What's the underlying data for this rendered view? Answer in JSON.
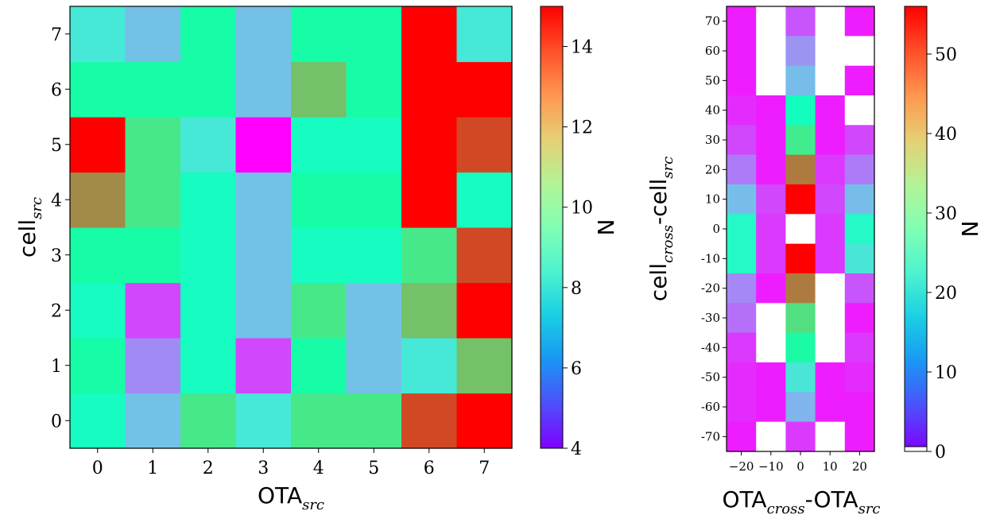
{
  "chart_data": [
    {
      "type": "heatmap",
      "xlabel": {
        "main": "OTA",
        "sub": "src"
      },
      "ylabel": {
        "main": "cell",
        "sub": "src"
      },
      "x_ticks": [
        "0",
        "1",
        "2",
        "3",
        "4",
        "5",
        "6",
        "7"
      ],
      "y_ticks": [
        "0",
        "1",
        "2",
        "3",
        "4",
        "5",
        "6",
        "7"
      ],
      "colorbar": {
        "label": "N",
        "min": 4,
        "max": 15,
        "ticks": [
          "4",
          "6",
          "8",
          "10",
          "12",
          "14"
        ],
        "tick_values": [
          4,
          6,
          8,
          10,
          12,
          14
        ],
        "colormap": "rainbow"
      },
      "grid": "off",
      "values_by_row_y0_to_y7": [
        [
          9,
          7,
          11,
          8,
          11,
          11,
          14,
          15
        ],
        [
          10,
          6,
          9,
          5,
          10,
          7,
          8,
          12
        ],
        [
          9,
          5,
          9,
          7,
          11,
          7,
          12,
          15
        ],
        [
          10,
          10,
          9,
          7,
          9,
          9,
          11,
          14
        ],
        [
          13,
          11,
          9,
          7,
          10,
          10,
          15,
          9
        ],
        [
          15,
          11,
          8,
          4,
          9,
          9,
          15,
          14
        ],
        [
          10,
          10,
          10,
          7,
          12,
          10,
          15,
          15
        ],
        [
          8,
          7,
          10,
          7,
          10,
          10,
          15,
          8
        ]
      ]
    },
    {
      "type": "heatmap",
      "xlabel": {
        "main": "OTA",
        "mid": "-OTA",
        "sub1": "cross",
        "sub2": "src"
      },
      "ylabel": {
        "main": "cell",
        "mid": "-cell",
        "sub1": "cross",
        "sub2": "src"
      },
      "x_ticks": [
        "−20",
        "−10",
        "0",
        "10",
        "20"
      ],
      "x_tick_values": [
        -20,
        -10,
        0,
        10,
        20
      ],
      "y_ticks": [
        "70",
        "60",
        "50",
        "40",
        "30",
        "20",
        "10",
        "0",
        "-10",
        "-20",
        "-30",
        "-40",
        "-50",
        "-60",
        "-70"
      ],
      "y_tick_values": [
        70,
        60,
        50,
        40,
        30,
        20,
        10,
        0,
        -10,
        -20,
        -30,
        -40,
        -50,
        -60,
        -70
      ],
      "colorbar": {
        "label": "N",
        "min": 0,
        "max": 56,
        "ticks": [
          "0",
          "10",
          "20",
          "30",
          "40",
          "50"
        ],
        "tick_values": [
          0,
          10,
          20,
          30,
          40,
          50
        ],
        "colormap": "rainbow",
        "zero_color": "#ffffff"
      },
      "grid": "off",
      "null_means_blank": true,
      "values_by_row_y70_to_ym70": [
        [
          2,
          null,
          6,
          null,
          2
        ],
        [
          2,
          null,
          11,
          null,
          null
        ],
        [
          2,
          null,
          15,
          null,
          2
        ],
        [
          3,
          2,
          26,
          2,
          null
        ],
        [
          5,
          2,
          35,
          2,
          5
        ],
        [
          9,
          2,
          47,
          4,
          9
        ],
        [
          15,
          5,
          56,
          5,
          15
        ],
        [
          24,
          4,
          null,
          4,
          24
        ],
        [
          24,
          4,
          56,
          4,
          20
        ],
        [
          10,
          2,
          47,
          null,
          6
        ],
        [
          8,
          null,
          37,
          null,
          2
        ],
        [
          4,
          null,
          31,
          null,
          4
        ],
        [
          3,
          2,
          20,
          2,
          3
        ],
        [
          3,
          2,
          14,
          2,
          2
        ],
        [
          2,
          null,
          4,
          null,
          2
        ]
      ]
    }
  ]
}
